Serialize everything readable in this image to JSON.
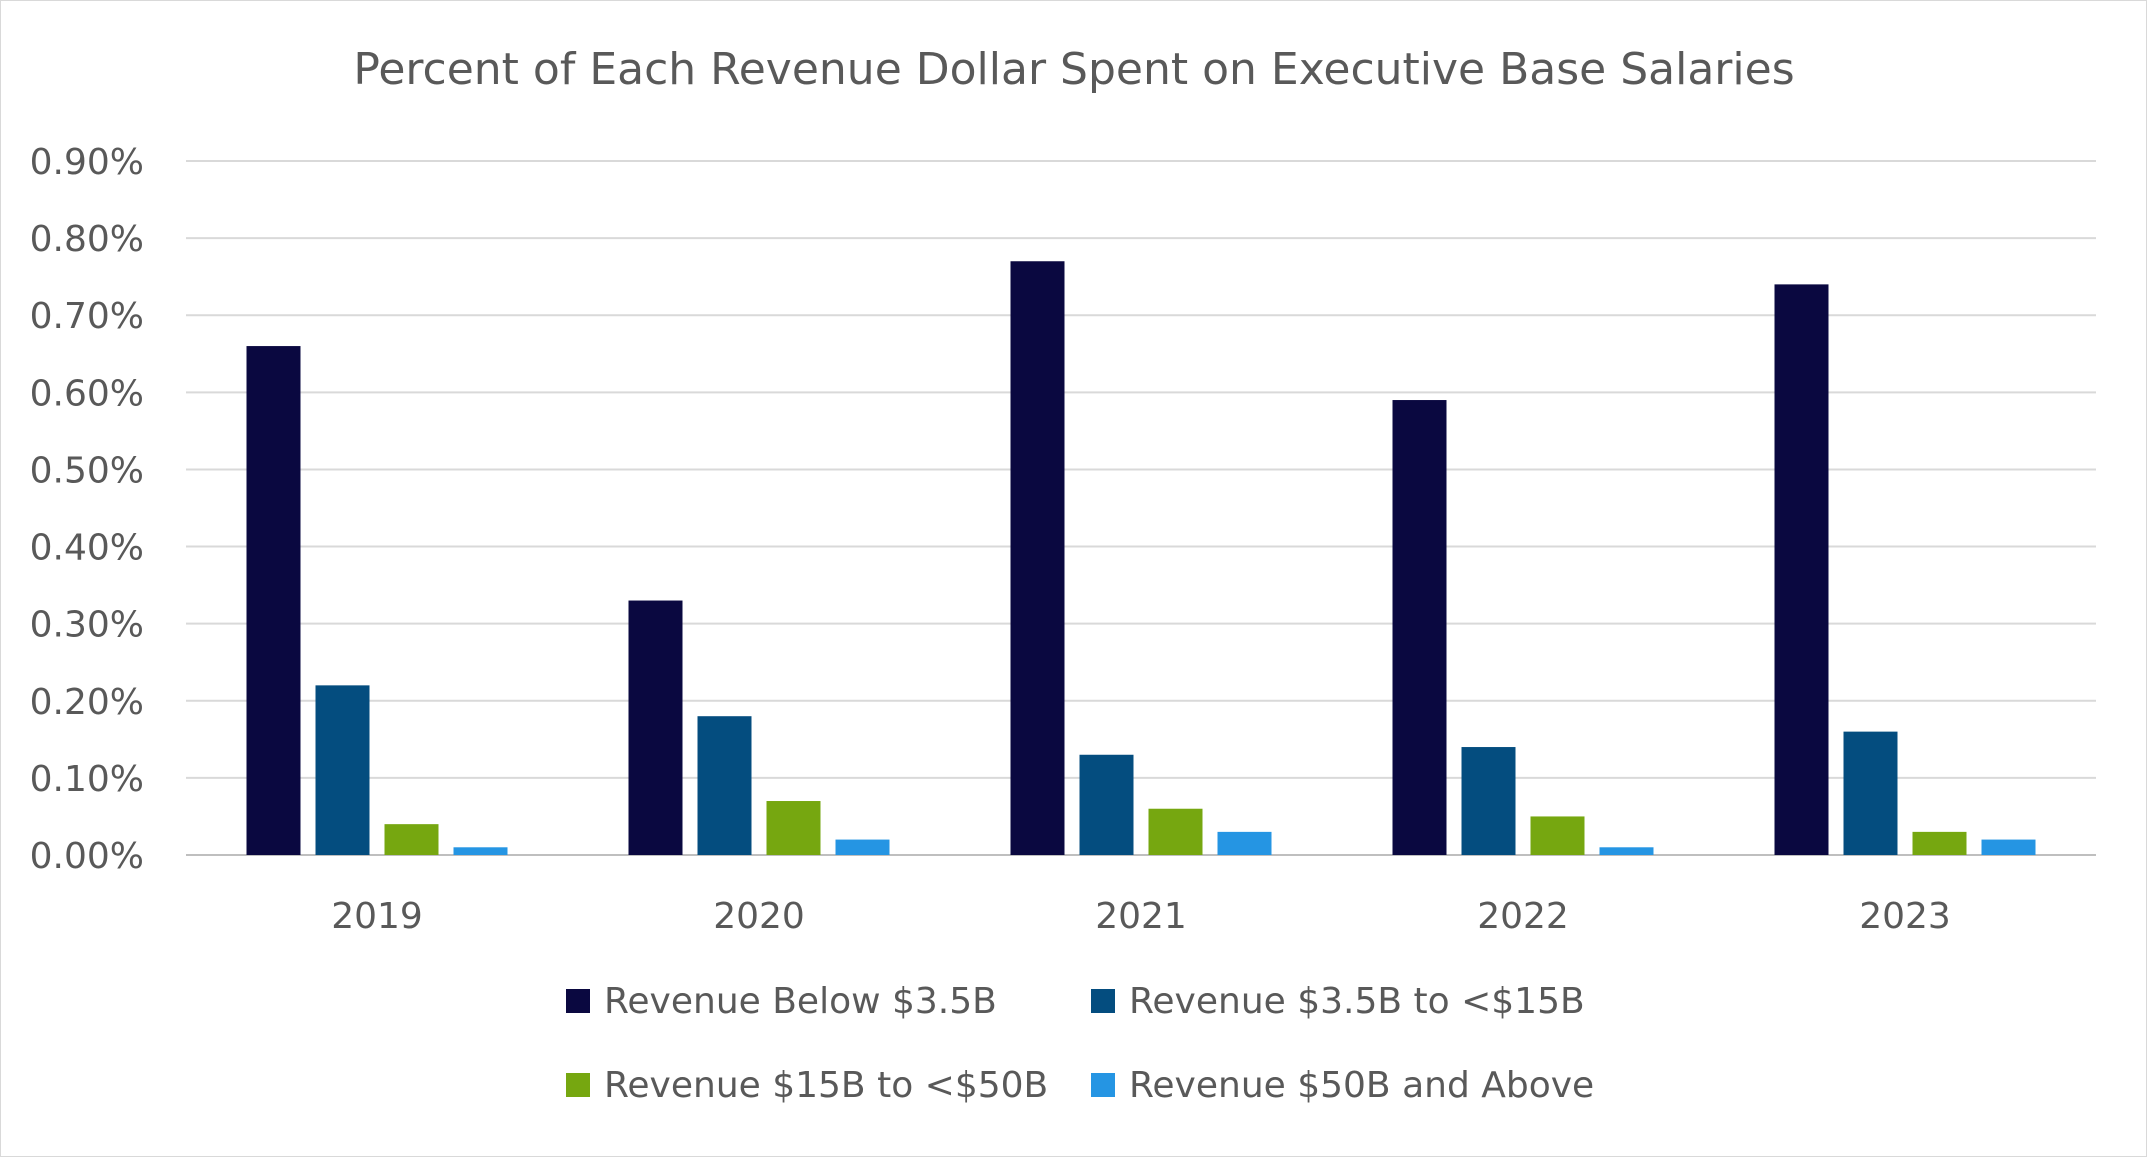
{
  "chart_data": {
    "type": "bar",
    "title": "Percent of Each Revenue Dollar Spent on Executive Base Salaries",
    "xlabel": "",
    "ylabel": "",
    "categories": [
      "2019",
      "2020",
      "2021",
      "2022",
      "2023"
    ],
    "y_ticks": [
      "0.00%",
      "0.10%",
      "0.20%",
      "0.30%",
      "0.40%",
      "0.50%",
      "0.60%",
      "0.70%",
      "0.80%",
      "0.90%"
    ],
    "ylim": [
      0,
      0.9
    ],
    "grid": true,
    "legend_position": "bottom",
    "series": [
      {
        "name": "Revenue Below $3.5B",
        "color": "#0a0840",
        "values": [
          0.66,
          0.33,
          0.77,
          0.59,
          0.74
        ]
      },
      {
        "name": "Revenue $3.5B to <$15B",
        "color": "#044d7f",
        "values": [
          0.22,
          0.18,
          0.13,
          0.14,
          0.16
        ]
      },
      {
        "name": "Revenue $15B to <$50B",
        "color": "#76a710",
        "values": [
          0.04,
          0.07,
          0.06,
          0.05,
          0.03
        ]
      },
      {
        "name": "Revenue $50B and Above",
        "color": "#2595e3",
        "values": [
          0.01,
          0.02,
          0.03,
          0.01,
          0.02
        ]
      }
    ]
  },
  "style": {
    "grid_color": "#d9d9d9",
    "text_color": "#595959",
    "axis_color": "#bfbfbf"
  }
}
